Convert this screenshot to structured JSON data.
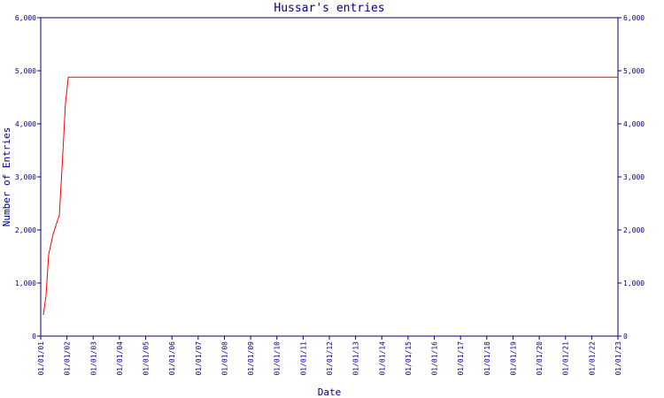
{
  "chart_data": {
    "type": "line",
    "title": "Hussar's entries",
    "x_label": "Date",
    "y_label": "Number of Entries",
    "x": [
      0.1,
      0.2,
      0.3,
      0.47,
      0.71,
      0.84,
      0.94,
      1.05,
      22
    ],
    "series": [
      {
        "name": "Hussar",
        "color": "#ff0000",
        "values": [
          400,
          750,
          1530,
          1920,
          2280,
          3420,
          4370,
          4880,
          4880
        ]
      }
    ],
    "xlim": [
      0,
      22
    ],
    "xticks": [
      {
        "value": 0,
        "label": "01/01/01"
      },
      {
        "value": 1,
        "label": "01/01/02"
      },
      {
        "value": 2,
        "label": "01/01/03"
      },
      {
        "value": 3,
        "label": "01/01/04"
      },
      {
        "value": 4,
        "label": "01/01/05"
      },
      {
        "value": 5,
        "label": "01/01/06"
      },
      {
        "value": 6,
        "label": "01/01/07"
      },
      {
        "value": 7,
        "label": "01/01/08"
      },
      {
        "value": 8,
        "label": "01/01/09"
      },
      {
        "value": 9,
        "label": "01/01/10"
      },
      {
        "value": 10,
        "label": "01/01/11"
      },
      {
        "value": 11,
        "label": "01/01/12"
      },
      {
        "value": 12,
        "label": "01/01/13"
      },
      {
        "value": 13,
        "label": "01/01/14"
      },
      {
        "value": 14,
        "label": "01/01/15"
      },
      {
        "value": 15,
        "label": "01/01/16"
      },
      {
        "value": 16,
        "label": "01/01/17"
      },
      {
        "value": 17,
        "label": "01/01/18"
      },
      {
        "value": 18,
        "label": "01/01/19"
      },
      {
        "value": 19,
        "label": "01/01/20"
      },
      {
        "value": 20,
        "label": "01/01/21"
      },
      {
        "value": 21,
        "label": "01/01/22"
      },
      {
        "value": 22,
        "label": "01/01/23"
      }
    ],
    "ylim": [
      0,
      6000
    ],
    "yticks": [
      0,
      {
        "value": 1000,
        "label": "1,000"
      },
      {
        "value": 2000,
        "label": "2,000"
      },
      {
        "value": 3000,
        "label": "3,000"
      },
      {
        "value": 4000,
        "label": "4,000"
      },
      {
        "value": 5000,
        "label": "5,000"
      },
      {
        "value": 6000,
        "label": "6,000"
      }
    ],
    "y2lim": [
      0,
      6000
    ],
    "y2ticks": [
      0,
      {
        "value": 1000,
        "label": "1,000"
      },
      {
        "value": 2000,
        "label": "2,000"
      },
      {
        "value": 3000,
        "label": "3,000"
      },
      {
        "value": 4000,
        "label": "4,000"
      },
      {
        "value": 5000,
        "label": "5,000"
      },
      {
        "value": 6000,
        "label": "6,000"
      }
    ],
    "axis_color": "#000080",
    "grid": false
  }
}
